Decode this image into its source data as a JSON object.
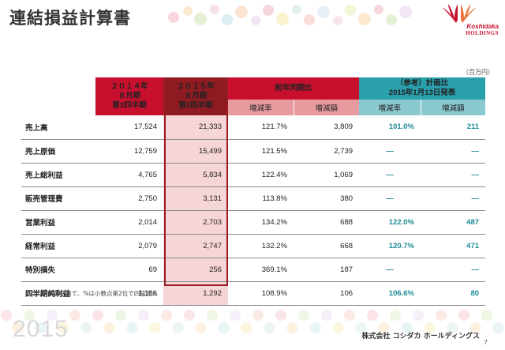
{
  "header": {
    "title": "連結損益計算書",
    "logo_line1": "Koshidaka",
    "logo_line2": "HOLDINGS"
  },
  "unit": "（百万円）",
  "table": {
    "col1": {
      "l1": "２０１４年",
      "l2": "８月期",
      "l3": "第2四半期"
    },
    "col2": {
      "l1": "２０１５年",
      "l2": "８月期",
      "l3": "第2四半期"
    },
    "yoy": {
      "title": "前年同期比",
      "rate": "増減率",
      "amount": "増減額"
    },
    "plan": {
      "l1": "（参考）計画比",
      "l2": "2015年1月13日発表",
      "rate": "増減率",
      "amount": "増減額"
    },
    "rows": [
      {
        "label": "売上高",
        "y2014": "17,524",
        "y2015": "21,333",
        "yoy_rate": "121.7%",
        "yoy_amount": "3,809",
        "plan_rate": "101.0%",
        "plan_amount": "211"
      },
      {
        "label": "売上原価",
        "y2014": "12,759",
        "y2015": "15,499",
        "yoy_rate": "121.5%",
        "yoy_amount": "2,739",
        "plan_rate": "—",
        "plan_amount": "—"
      },
      {
        "label": "売上総利益",
        "y2014": "4,765",
        "y2015": "5,834",
        "yoy_rate": "122.4%",
        "yoy_amount": "1,069",
        "plan_rate": "—",
        "plan_amount": "—"
      },
      {
        "label": "販売管理費",
        "y2014": "2,750",
        "y2015": "3,131",
        "yoy_rate": "113.8%",
        "yoy_amount": "380",
        "plan_rate": "—",
        "plan_amount": "—"
      },
      {
        "label": "営業利益",
        "y2014": "2,014",
        "y2015": "2,703",
        "yoy_rate": "134.2%",
        "yoy_amount": "688",
        "plan_rate": "122.0%",
        "plan_amount": "487"
      },
      {
        "label": "経常利益",
        "y2014": "2,079",
        "y2015": "2,747",
        "yoy_rate": "132.2%",
        "yoy_amount": "668",
        "plan_rate": "120.7%",
        "plan_amount": "471"
      },
      {
        "label": "特別損失",
        "y2014": "69",
        "y2015": "256",
        "yoy_rate": "369.1%",
        "yoy_amount": "187",
        "plan_rate": "—",
        "plan_amount": "—"
      },
      {
        "label": "四半期純利益",
        "y2014": "1,186",
        "y2015": "1,292",
        "yoy_rate": "108.9%",
        "yoy_amount": "106",
        "plan_rate": "106.6%",
        "plan_amount": "80"
      }
    ]
  },
  "note": "※百万円未満切捨て、%は小数点第2位で四捨五入",
  "footer": {
    "year": "2015",
    "company": "株式会社 コシダカ ホールディングス",
    "page": "7"
  },
  "colors": {
    "accent_red": "#c8102e",
    "dark_red": "#8e1b22",
    "teal": "#2aa0ad",
    "highlight": "#f6d5d6"
  }
}
